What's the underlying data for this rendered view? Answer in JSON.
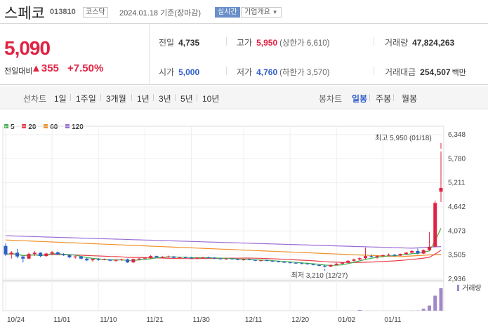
{
  "header": {
    "name": "스페코",
    "code": "013810",
    "market": "코스닥",
    "date": "2024.01.18",
    "date_suffix": "기준(장마감)",
    "realtime": "실시간",
    "info_label": "기업개요"
  },
  "summary": {
    "price": "5,090",
    "change_label": "전일대비",
    "change_amount": "355",
    "change_pct": "+7.50%",
    "prev_close_label": "전일",
    "prev_close": "4,735",
    "high_label": "고가",
    "high": "5,950",
    "upper_limit": "(상한가 6,610)",
    "volume_label": "거래량",
    "volume": "47,824,263",
    "open_label": "시가",
    "open": "5,000",
    "low_label": "저가",
    "low": "4,760",
    "lower_limit": "(하한가 3,570)",
    "amount_label": "거래대금",
    "amount": "254,507",
    "amount_unit": "백만"
  },
  "tabs": {
    "line_label": "선차트",
    "periods": [
      "1일",
      "1주일",
      "3개월",
      "1년",
      "3년",
      "5년",
      "10년"
    ],
    "candle_label": "봉차트",
    "candles": [
      "일봉",
      "주봉",
      "월봉"
    ],
    "active_candle": "일봉"
  },
  "colors": {
    "up": "#e12343",
    "down": "#2f5ec9",
    "ma5": "#3bb14a",
    "ma20": "#e8404a",
    "ma60": "#f0922b",
    "ma120": "#9b6dd6",
    "volume": "#a188c8"
  },
  "chart_data": {
    "type": "candlestick",
    "legend": [
      {
        "name": "5",
        "color": "#3bb14a"
      },
      {
        "name": "20",
        "color": "#e8404a"
      },
      {
        "name": "60",
        "color": "#f0922b"
      },
      {
        "name": "120",
        "color": "#9b6dd6"
      }
    ],
    "y_ticks": [
      "6,348",
      "5,780",
      "5,211",
      "4,642",
      "4,073",
      "3,505",
      "2,936"
    ],
    "y_range": [
      2936,
      6348
    ],
    "x_ticks": [
      "10/24",
      "11/01",
      "11/10",
      "11/21",
      "11/30",
      "12/11",
      "12/20",
      "01/02",
      "01/11"
    ],
    "high_annotation": "최고 5,950 (01/18)",
    "low_annotation": "최저 3,210 (12/27)",
    "volume_label": "거래량",
    "candles": [
      [
        3720,
        3780,
        3480,
        3520
      ],
      [
        3520,
        3600,
        3420,
        3560
      ],
      [
        3560,
        3650,
        3430,
        3470
      ],
      [
        3470,
        3480,
        3330,
        3420
      ],
      [
        3420,
        3560,
        3410,
        3530
      ],
      [
        3530,
        3600,
        3480,
        3560
      ],
      [
        3560,
        3570,
        3450,
        3480
      ],
      [
        3480,
        3560,
        3460,
        3540
      ],
      [
        3540,
        3600,
        3500,
        3570
      ],
      [
        3570,
        3590,
        3500,
        3520
      ],
      [
        3520,
        3550,
        3480,
        3500
      ],
      [
        3500,
        3520,
        3430,
        3450
      ],
      [
        3450,
        3500,
        3420,
        3470
      ],
      [
        3470,
        3480,
        3400,
        3420
      ],
      [
        3420,
        3440,
        3360,
        3380
      ],
      [
        3380,
        3420,
        3350,
        3410
      ],
      [
        3410,
        3430,
        3370,
        3390
      ],
      [
        3390,
        3420,
        3380,
        3400
      ],
      [
        3400,
        3410,
        3360,
        3370
      ],
      [
        3370,
        3400,
        3340,
        3390
      ],
      [
        3390,
        3420,
        3370,
        3400
      ],
      [
        3400,
        3420,
        3320,
        3330
      ],
      [
        3330,
        3420,
        3320,
        3410
      ],
      [
        3410,
        3440,
        3380,
        3420
      ],
      [
        3420,
        3450,
        3400,
        3440
      ],
      [
        3440,
        3500,
        3420,
        3480
      ],
      [
        3480,
        3490,
        3440,
        3450
      ],
      [
        3450,
        3480,
        3440,
        3460
      ],
      [
        3460,
        3490,
        3440,
        3470
      ],
      [
        3470,
        3480,
        3430,
        3440
      ],
      [
        3440,
        3460,
        3420,
        3450
      ],
      [
        3450,
        3470,
        3430,
        3440
      ],
      [
        3440,
        3460,
        3420,
        3430
      ],
      [
        3430,
        3450,
        3410,
        3440
      ],
      [
        3440,
        3460,
        3420,
        3450
      ],
      [
        3450,
        3470,
        3430,
        3440
      ],
      [
        3440,
        3450,
        3410,
        3420
      ],
      [
        3420,
        3440,
        3400,
        3410
      ],
      [
        3410,
        3430,
        3390,
        3420
      ],
      [
        3420,
        3440,
        3400,
        3410
      ],
      [
        3410,
        3420,
        3380,
        3390
      ],
      [
        3390,
        3410,
        3370,
        3400
      ],
      [
        3400,
        3420,
        3380,
        3390
      ],
      [
        3390,
        3400,
        3360,
        3370
      ],
      [
        3370,
        3390,
        3350,
        3380
      ],
      [
        3380,
        3400,
        3360,
        3370
      ],
      [
        3370,
        3380,
        3340,
        3350
      ],
      [
        3350,
        3370,
        3330,
        3340
      ],
      [
        3340,
        3360,
        3320,
        3330
      ],
      [
        3330,
        3350,
        3310,
        3320
      ],
      [
        3320,
        3340,
        3300,
        3310
      ],
      [
        3310,
        3330,
        3290,
        3300
      ],
      [
        3300,
        3320,
        3280,
        3290
      ],
      [
        3290,
        3300,
        3260,
        3270
      ],
      [
        3270,
        3290,
        3240,
        3250
      ],
      [
        3250,
        3270,
        3210,
        3230
      ],
      [
        3230,
        3280,
        3220,
        3270
      ],
      [
        3270,
        3320,
        3260,
        3300
      ],
      [
        3300,
        3340,
        3290,
        3330
      ],
      [
        3330,
        3380,
        3310,
        3370
      ],
      [
        3370,
        3420,
        3350,
        3400
      ],
      [
        3400,
        3450,
        3380,
        3430
      ],
      [
        3430,
        3680,
        3400,
        3480
      ],
      [
        3480,
        3520,
        3440,
        3460
      ],
      [
        3460,
        3500,
        3420,
        3480
      ],
      [
        3480,
        3520,
        3450,
        3500
      ],
      [
        3500,
        3540,
        3470,
        3510
      ],
      [
        3510,
        3530,
        3470,
        3490
      ],
      [
        3490,
        3540,
        3480,
        3530
      ],
      [
        3530,
        3580,
        3510,
        3560
      ],
      [
        3560,
        3620,
        3540,
        3600
      ],
      [
        3600,
        3660,
        3520,
        3540
      ],
      [
        3540,
        3640,
        3530,
        3620
      ],
      [
        3620,
        4050,
        3600,
        3700
      ],
      [
        3700,
        4790,
        3690,
        4735
      ],
      [
        5000,
        5950,
        4760,
        5090
      ]
    ],
    "volumes": [
      0,
      0,
      0,
      0,
      0,
      0,
      0,
      0,
      0,
      0,
      0,
      0,
      0,
      0,
      0,
      0,
      0,
      0,
      0,
      0,
      0,
      0,
      0,
      0,
      0,
      0,
      0,
      0,
      0,
      0,
      0,
      0,
      0,
      0,
      0,
      0,
      0,
      0,
      0,
      0,
      0,
      0,
      0,
      0,
      0,
      0,
      0,
      0,
      0,
      0,
      0,
      0,
      0,
      0,
      0,
      0,
      0,
      0,
      0,
      0,
      0,
      1.5,
      0,
      0,
      0,
      0,
      0,
      0,
      0,
      0,
      0.3,
      0.4,
      4,
      11,
      32,
      47.8
    ],
    "volume_unit": "millions"
  }
}
